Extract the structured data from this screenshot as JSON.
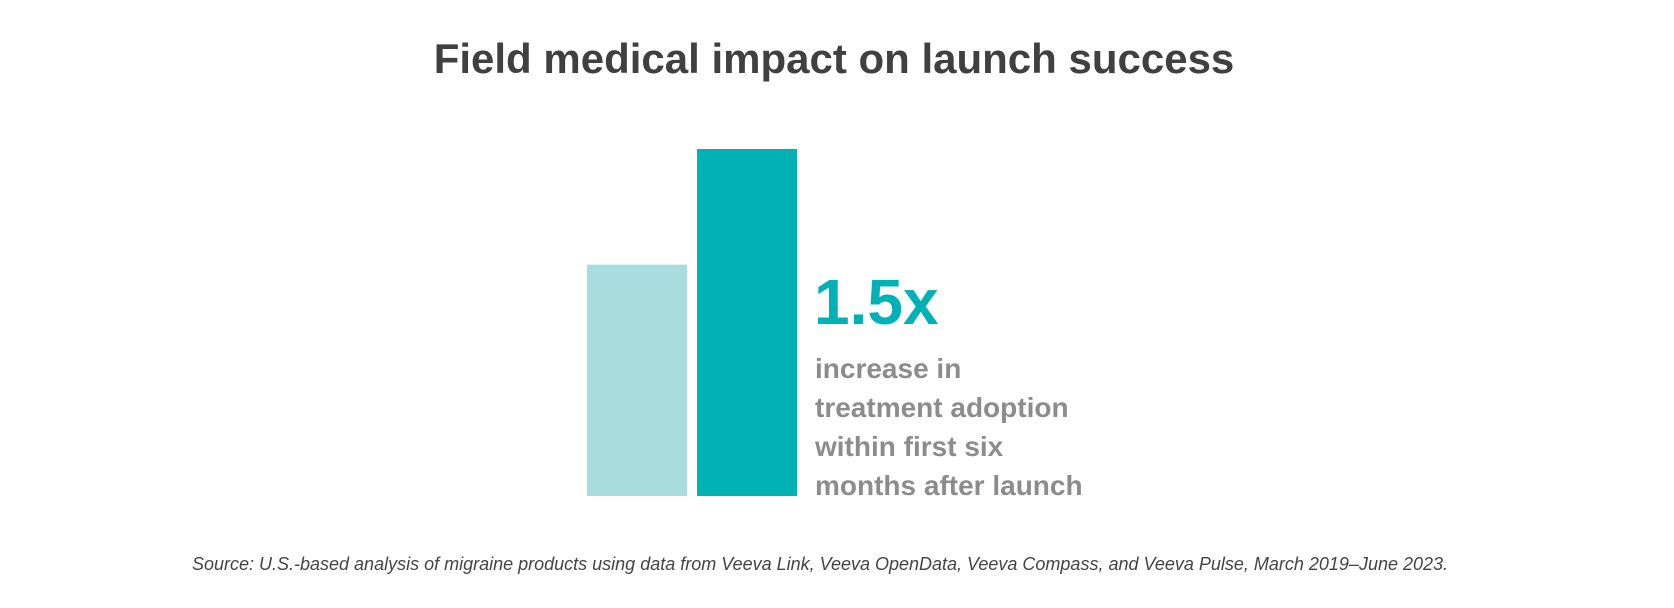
{
  "chart_data": {
    "type": "bar",
    "title": "Field medical impact on launch success",
    "values": [
      1,
      1.5
    ],
    "colors": [
      "#a8dcdf",
      "#00b2b5"
    ],
    "annotation": {
      "headline": "1.5x",
      "lines": [
        "increase in",
        "treatment adoption",
        "within first six",
        "months after launch"
      ]
    },
    "source": "Source: U.S.-based analysis of migraine products using data from Veeva Link, Veeva OpenData, Veeva Compass, and Veeva Pulse, March 2019–June 2023."
  }
}
